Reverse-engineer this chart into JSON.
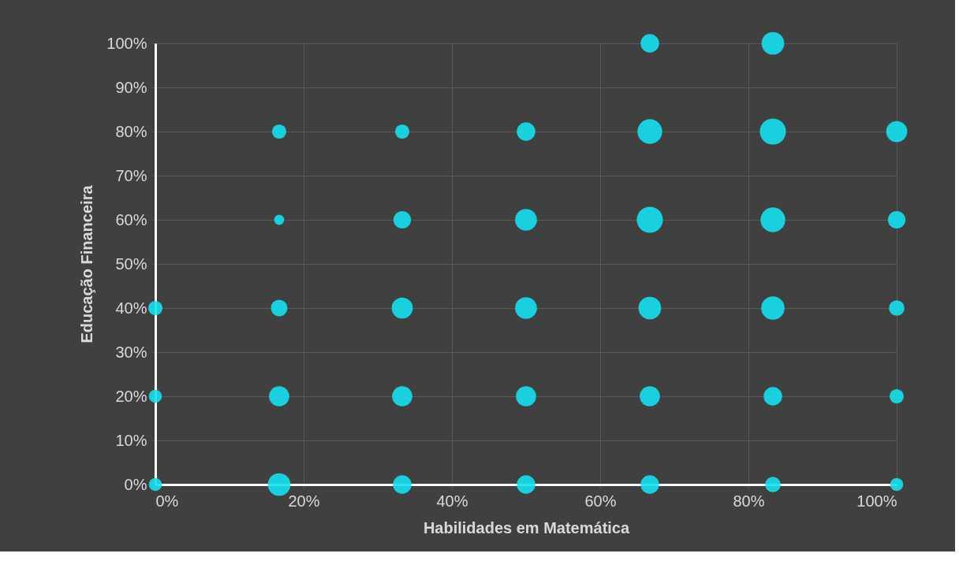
{
  "chart_data": {
    "type": "bubble",
    "xlabel": "Habilidades em Matemática",
    "ylabel": "Educação Financeira",
    "xlim": [
      0,
      100
    ],
    "ylim": [
      0,
      100
    ],
    "xticks": [
      {
        "value": 0,
        "label": "0%"
      },
      {
        "value": 20,
        "label": "20%"
      },
      {
        "value": 40,
        "label": "40%"
      },
      {
        "value": 60,
        "label": "60%"
      },
      {
        "value": 80,
        "label": "80%"
      },
      {
        "value": 100,
        "label": "100%"
      }
    ],
    "yticks": [
      {
        "value": 0,
        "label": "0%"
      },
      {
        "value": 10,
        "label": "10%"
      },
      {
        "value": 20,
        "label": "20%"
      },
      {
        "value": 30,
        "label": "30%"
      },
      {
        "value": 40,
        "label": "40%"
      },
      {
        "value": 50,
        "label": "50%"
      },
      {
        "value": 60,
        "label": "60%"
      },
      {
        "value": 70,
        "label": "70%"
      },
      {
        "value": 80,
        "label": "80%"
      },
      {
        "value": 90,
        "label": "90%"
      },
      {
        "value": 100,
        "label": "100%"
      }
    ],
    "grid": true,
    "marker": "circle",
    "series": [
      {
        "color": "#14e0f0",
        "x": [
          0,
          0,
          0,
          16.7,
          16.7,
          16.7,
          16.7,
          16.7,
          33.3,
          33.3,
          33.3,
          33.3,
          33.3,
          50,
          50,
          50,
          50,
          50,
          66.7,
          66.7,
          66.7,
          66.7,
          66.7,
          66.7,
          83.3,
          83.3,
          83.3,
          83.3,
          83.3,
          83.3,
          100,
          100,
          100,
          100,
          100
        ],
        "values": [
          40,
          20,
          0,
          80,
          60,
          40,
          20,
          0,
          80,
          60,
          40,
          20,
          0,
          80,
          60,
          40,
          20,
          0,
          100,
          80,
          60,
          40,
          20,
          0,
          100,
          80,
          60,
          40,
          20,
          0,
          80,
          60,
          40,
          20,
          0
        ],
        "sizes": [
          0.3,
          0.25,
          0.25,
          0.3,
          0.15,
          0.4,
          0.6,
          0.75,
          0.3,
          0.45,
          0.65,
          0.6,
          0.5,
          0.5,
          0.7,
          0.7,
          0.6,
          0.5,
          0.5,
          0.9,
          1,
          0.75,
          0.6,
          0.5,
          0.75,
          1,
          0.9,
          0.8,
          0.5,
          0.35,
          0.65,
          0.45,
          0.35,
          0.3,
          0.25
        ]
      }
    ]
  }
}
